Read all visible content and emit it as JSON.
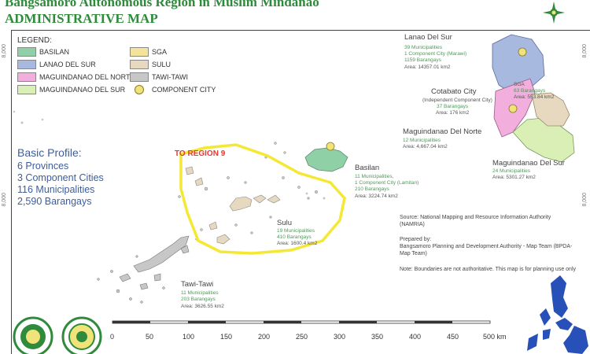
{
  "title": {
    "line1": "Bangsamoro Autonomous Region in Muslim Mindanao",
    "line2": "ADMINISTRATIVE MAP"
  },
  "grid": {
    "labels": [
      "8,000",
      "8,000",
      "8,000",
      "8,000"
    ]
  },
  "legend": {
    "title": "LEGEND:",
    "items": [
      {
        "label": "BASILAN",
        "color": "#8fd0a6"
      },
      {
        "label": "LANAO DEL SUR",
        "color": "#a7b9de"
      },
      {
        "label": "MAGUINDANAO DEL NORTE",
        "color": "#f2aedd"
      },
      {
        "label": "MAGUINDANAO DEL SUR",
        "color": "#d9efb5"
      },
      {
        "label": "SGA",
        "color": "#f4e39c"
      },
      {
        "label": "SULU",
        "color": "#e7d9bf"
      },
      {
        "label": "TAWI-TAWI",
        "color": "#c7c7c7"
      },
      {
        "label": "COMPONENT CITY",
        "color": "#d9c34a"
      }
    ]
  },
  "profile": {
    "title": "Basic Profile:",
    "lines": [
      "6 Provinces",
      "3 Component Cities",
      "116 Municipalities",
      "2,590 Barangays"
    ]
  },
  "regions": {
    "lanao": {
      "name": "Lanao Del Sur",
      "l1": "39 Municipalities",
      "l2": "1 Component City (Marawi)",
      "l3": "1159 Barangays",
      "area": "Area: 14357.01 km2"
    },
    "cotabato": {
      "name": "Cotabato City",
      "l1": "(Independent Component City)",
      "l2": "37 Barangays",
      "area": "Area: 176 km2"
    },
    "sga": {
      "name": "SGA",
      "l1": "63 Barangays",
      "area": "Area: 553.84 km2"
    },
    "mdn": {
      "name": "Maguindanao Del Norte",
      "l1": "12 Municipalities",
      "area": "Area: 4,667.04 km2"
    },
    "mds": {
      "name": "Maguindanao Del Sur",
      "l1": "24 Municipalities",
      "area": "Area: 5301.27 km2"
    },
    "basilan": {
      "name": "Basilan",
      "l1": "11 Municipalities,",
      "l2": "1 Component City (Lamitan)",
      "l3": "210 Barangays",
      "area": "Area: 3224.74 km2"
    },
    "sulu": {
      "name": "Sulu",
      "l1": "19 Municipalities",
      "l2": "410 Barangays",
      "area": "Area: 1600.4 km2"
    },
    "tawi": {
      "name": "Tawi-Tawi",
      "l1": "11 Municipalities",
      "l2": "203 Barangays",
      "area": "Area: 3626.55 km2"
    }
  },
  "annotation": "TO REGION 9",
  "notes": {
    "source": "Source: National Mapping and Resource Information Authority (NAMRIA)",
    "prepared_label": "Prepared by:",
    "prepared_by": "Bangsamoro Planning and Development Authority - Map Team (BPDA-Map Team)",
    "note": "Note: Boundaries are not authoritative. This map is for planning use only"
  },
  "scale": {
    "ticks": [
      "0",
      "50",
      "100",
      "150",
      "200",
      "250",
      "300",
      "350",
      "400",
      "450",
      "500 km"
    ]
  },
  "colors": {
    "title_green": "#2f8a3c",
    "profile_blue": "#3d5d9c",
    "boundary_yellow": "#f5e834",
    "annotation_red": "#e6392f",
    "inset_blue": "#2750b8"
  }
}
